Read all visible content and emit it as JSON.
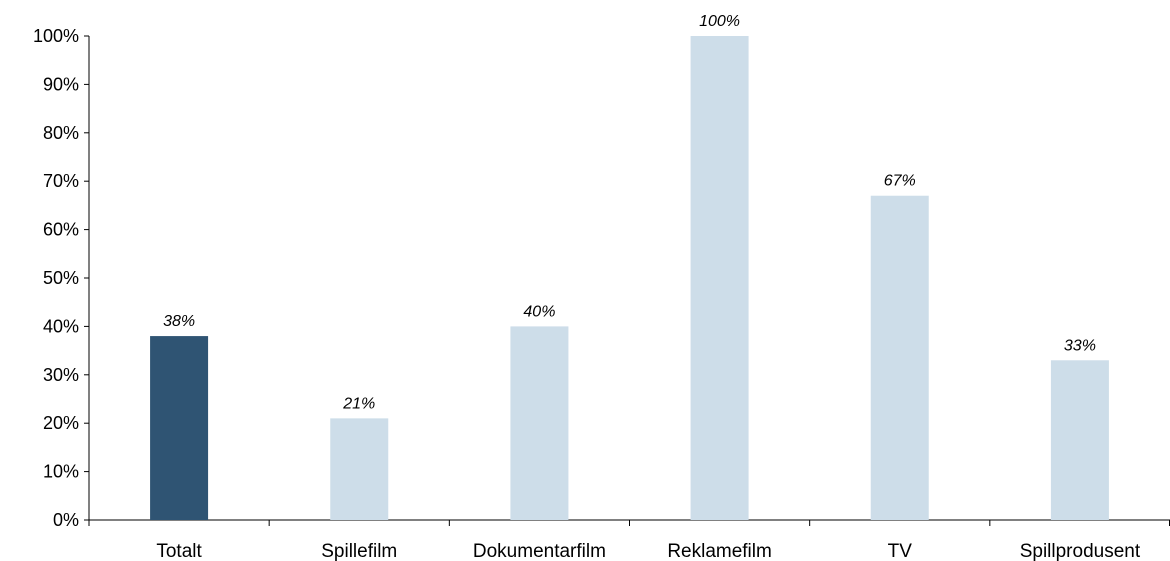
{
  "chart_data": {
    "type": "bar",
    "categories": [
      "Totalt",
      "Spillefilm",
      "Dokumentarfilm",
      "Reklamefilm",
      "TV",
      "Spillprodusent"
    ],
    "values": [
      38,
      21,
      40,
      100,
      67,
      33
    ],
    "data_labels": [
      "38%",
      "21%",
      "40%",
      "100%",
      "67%",
      "33%"
    ],
    "y_ticks": [
      "0%",
      "10%",
      "20%",
      "30%",
      "40%",
      "50%",
      "60%",
      "70%",
      "80%",
      "90%",
      "100%"
    ],
    "ylim": [
      0,
      100
    ],
    "grid": false,
    "legend": "none",
    "title": "",
    "xlabel": "",
    "ylabel": "",
    "colors": {
      "highlight": "#2f5473",
      "default": "#cddde9",
      "axis": "#000000"
    }
  }
}
